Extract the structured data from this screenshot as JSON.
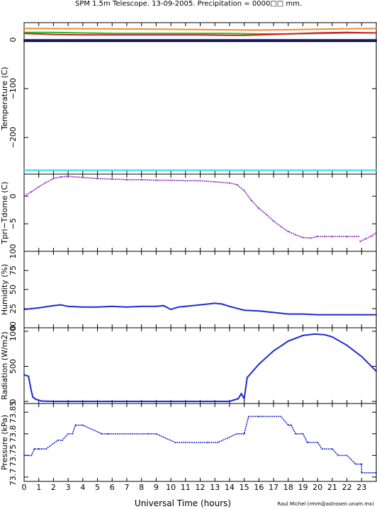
{
  "title": "SPM 1.5m Telescope. 13-09-2005. Precipitation = 0000□□ mm.",
  "xlabel": "Universal Time (hours)",
  "credit": "Raul Michel (rmm@astrosen.unam.mx)",
  "chart_data": [
    {
      "type": "line",
      "panel": "temperature",
      "ylabel": "Temperature (C)",
      "ylim": [
        -275,
        35
      ],
      "yticks": [
        0,
        -100,
        -200
      ],
      "ytick_labels": [
        "0",
        "−100",
        "−200"
      ],
      "grid": false,
      "series": [
        {
          "color": "#f08c30",
          "x": [
            0,
            4,
            8,
            12,
            15,
            16,
            18,
            20,
            22,
            24
          ],
          "y": [
            23,
            22.5,
            22,
            21,
            20,
            20,
            20.5,
            21.5,
            22.5,
            23
          ]
        },
        {
          "color": "#1fbf1f",
          "x": [
            0,
            2,
            4,
            6,
            8,
            10,
            12,
            14,
            16,
            18,
            20,
            22,
            24
          ],
          "y": [
            15,
            15,
            14,
            13,
            13,
            13,
            13,
            13,
            12,
            12,
            13,
            14,
            14
          ]
        },
        {
          "color": "#d0202a",
          "x": [
            0,
            2,
            4,
            6,
            8,
            10,
            12,
            14,
            15,
            16,
            18,
            20,
            22,
            24
          ],
          "y": [
            13,
            11,
            10,
            10,
            10,
            10,
            10,
            9,
            9,
            10,
            12,
            14,
            15,
            14
          ]
        },
        {
          "color": "#1010a0",
          "x": [
            0,
            24
          ],
          "y": [
            0,
            0
          ]
        },
        {
          "color": "#000000",
          "x": [
            0,
            24
          ],
          "y": [
            -3,
            -3
          ]
        },
        {
          "color": "#22e0e8",
          "x": [
            0,
            24
          ],
          "y": [
            -267,
            -267
          ]
        }
      ]
    },
    {
      "type": "scatter",
      "panel": "tpri_tdome",
      "ylabel": "Tpri−Tdome (C)",
      "ylim": [
        -10,
        4
      ],
      "yticks": [
        0,
        -5
      ],
      "ytick_labels": [
        "0",
        "−5"
      ],
      "color": "#8a2ab8",
      "series": [
        {
          "name": "",
          "x": [
            0,
            0.5,
            1,
            1.5,
            2,
            2.5,
            3,
            4,
            5,
            6,
            7,
            8,
            9,
            10,
            11,
            12,
            13,
            14,
            14.5,
            15,
            15.5,
            16,
            16.5,
            17,
            17.5,
            18,
            18.5,
            19,
            19.5,
            20,
            20.5,
            21,
            21.5,
            22,
            22.5,
            22.8
          ],
          "y": [
            0,
            0.8,
            1.7,
            2.5,
            3.2,
            3.5,
            3.6,
            3.4,
            3.2,
            3.1,
            3.0,
            3.0,
            2.9,
            2.9,
            2.8,
            2.8,
            2.6,
            2.4,
            2.1,
            1.0,
            -0.8,
            -2.2,
            -3.3,
            -4.5,
            -5.5,
            -6.4,
            -7.0,
            -7.5,
            -7.6,
            -7.3,
            -7.3,
            -7.3,
            -7.3,
            -7.3,
            -7.3,
            -7.3
          ]
        },
        {
          "name": "",
          "x": [
            22.9,
            23.3,
            23.7,
            24
          ],
          "y": [
            -8.2,
            -7.7,
            -7.2,
            -6.6
          ]
        }
      ]
    },
    {
      "type": "line",
      "panel": "humidity",
      "ylabel": "Humidity (%)",
      "ylim": [
        0,
        100
      ],
      "yticks": [
        0,
        25,
        50,
        75,
        100
      ],
      "ytick_labels": [
        "0",
        "25",
        "50",
        "75",
        "100"
      ],
      "color": "#1f2ad0",
      "series": [
        {
          "name": "",
          "x": [
            0,
            1,
            2,
            2.5,
            3,
            4,
            5,
            6,
            7,
            8,
            9,
            9.5,
            10,
            10.5,
            11,
            12,
            13,
            13.5,
            14,
            15,
            16,
            17,
            18,
            19,
            20,
            21,
            22,
            23,
            24
          ],
          "y": [
            24,
            26,
            29,
            30,
            28,
            27,
            27,
            28,
            27,
            28,
            28,
            29,
            24,
            27,
            28,
            30,
            32,
            31,
            28,
            23,
            22,
            20,
            18,
            18,
            17,
            17,
            17,
            17,
            17
          ]
        }
      ]
    },
    {
      "type": "line",
      "panel": "radiation",
      "ylabel": "Radiation (W/m2)",
      "ylim": [
        -30,
        1050
      ],
      "yticks": [
        0,
        500,
        1000
      ],
      "ytick_labels": [
        "0",
        "500",
        "1000"
      ],
      "color": "#1f2ad0",
      "series": [
        {
          "name": "",
          "x": [
            0,
            0.3,
            0.5,
            0.6,
            0.8,
            1.2,
            2,
            4,
            6,
            8,
            10,
            12,
            14,
            14.6,
            14.8,
            15,
            15.2,
            16,
            17,
            18,
            19,
            19.8,
            20.5,
            21,
            22,
            23,
            24
          ],
          "y": [
            380,
            360,
            140,
            60,
            30,
            5,
            0,
            0,
            0,
            0,
            0,
            0,
            0,
            40,
            110,
            40,
            340,
            530,
            720,
            860,
            940,
            960,
            950,
            920,
            800,
            640,
            430
          ]
        }
      ]
    },
    {
      "type": "scatter",
      "panel": "pressure",
      "ylabel": "Pressure (kPa)",
      "ylim": [
        73.69,
        73.87
      ],
      "yticks": [
        73.7,
        73.75,
        73.8,
        73.85
      ],
      "ytick_labels": [
        "73.7",
        "73.75",
        "73.8",
        "73.85"
      ],
      "color": "#1f2ad0",
      "series": [
        {
          "name": "",
          "x": [
            0,
            0.5,
            0.7,
            1,
            1.2,
            1.5,
            2.3,
            2.6,
            3,
            3.3,
            3.5,
            4,
            5.3,
            5.7,
            8.5,
            9,
            10.3,
            11,
            12.5,
            13.2,
            14.5,
            15,
            15.3,
            16,
            16.2,
            17.5,
            18,
            18.2,
            18.5,
            19,
            19.3,
            20,
            20.3,
            21,
            21.4,
            22,
            22.6,
            23,
            23,
            24
          ],
          "y": [
            73.75,
            73.75,
            73.765,
            73.765,
            73.765,
            73.765,
            73.785,
            73.785,
            73.8,
            73.8,
            73.82,
            73.82,
            73.8,
            73.8,
            73.8,
            73.8,
            73.78,
            73.78,
            73.78,
            73.78,
            73.8,
            73.8,
            73.84,
            73.84,
            73.84,
            73.84,
            73.82,
            73.82,
            73.8,
            73.8,
            73.78,
            73.78,
            73.765,
            73.765,
            73.75,
            73.75,
            73.73,
            73.73,
            73.71,
            73.71
          ]
        }
      ]
    }
  ],
  "x_axis": {
    "min": 0,
    "max": 24,
    "tick_labels": [
      "0",
      "1",
      "2",
      "3",
      "4",
      "5",
      "6",
      "7",
      "8",
      "9",
      "10",
      "11",
      "12",
      "13",
      "14",
      "15",
      "16",
      "17",
      "18",
      "19",
      "20",
      "21",
      "22",
      "23"
    ]
  }
}
